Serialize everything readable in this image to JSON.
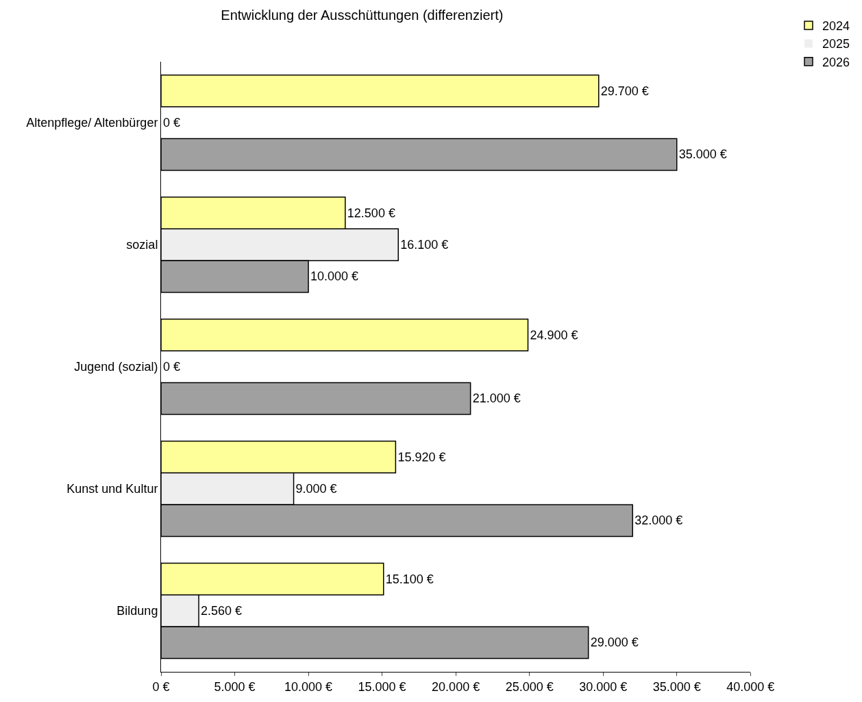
{
  "chart_data": {
    "type": "bar",
    "orientation": "horizontal",
    "title": "Entwicklung der Ausschüttungen (differenziert)",
    "categories": [
      "Altenpflege/ Altenbürger",
      "sozial",
      "Jugend (sozial)",
      "Kunst und Kultur",
      "Bildung"
    ],
    "series": [
      {
        "name": "2024",
        "color": "#ffff99",
        "values": [
          29700,
          12500,
          24900,
          15920,
          15100
        ],
        "value_labels": [
          "29.700 €",
          "12.500 €",
          "24.900 €",
          "15.920 €",
          "15.100 €"
        ]
      },
      {
        "name": "2025",
        "color": "#eeeeee",
        "values": [
          0,
          16100,
          0,
          9000,
          2560
        ],
        "value_labels": [
          "0 €",
          "16.100 €",
          "0 €",
          "9.000 €",
          "2.560 €"
        ]
      },
      {
        "name": "2026",
        "color": "#a0a0a0",
        "values": [
          35000,
          10000,
          21000,
          32000,
          29000
        ],
        "value_labels": [
          "35.000 €",
          "10.000 €",
          "21.000 €",
          "32.000 €",
          "29.000 €"
        ]
      }
    ],
    "xlim": [
      0,
      40000
    ],
    "xticks": [
      {
        "value": 0,
        "label": "0 €"
      },
      {
        "value": 5000,
        "label": "5.000 €"
      },
      {
        "value": 10000,
        "label": "10.000 €"
      },
      {
        "value": 15000,
        "label": "15.000 €"
      },
      {
        "value": 20000,
        "label": "20.000 €"
      },
      {
        "value": 25000,
        "label": "25.000 €"
      },
      {
        "value": 30000,
        "label": "30.000 €"
      },
      {
        "value": 35000,
        "label": "35.000 €"
      },
      {
        "value": 40000,
        "label": "40.000 €"
      }
    ],
    "legend": "top right"
  }
}
